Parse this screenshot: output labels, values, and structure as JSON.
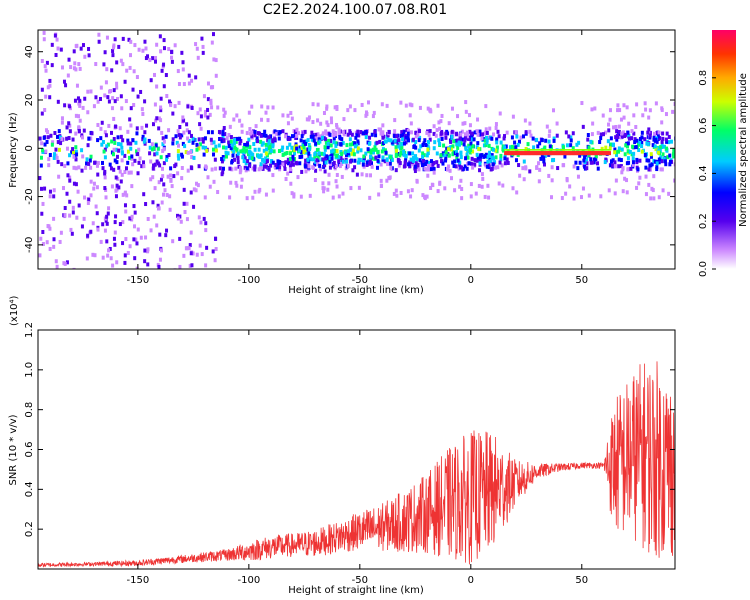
{
  "figure_title": "C2E2.2024.100.07.08.R01",
  "chart_data": [
    {
      "type": "heatmap",
      "title": "",
      "xlabel": "Height of straight line (km)",
      "ylabel": "Frequency (Hz)",
      "xlim": [
        -195,
        92
      ],
      "ylim": [
        -50,
        49
      ],
      "x_ticks": [
        -150,
        -100,
        -50,
        0,
        50
      ],
      "y_ticks": [
        -40,
        -20,
        0,
        20,
        40
      ],
      "grid": false,
      "colorbar": {
        "label": "Normalized spectral amplitude",
        "range": [
          0,
          1
        ],
        "ticks": [
          "0.0",
          "0.2",
          "0.4",
          "0.6",
          "0.8"
        ],
        "tick_values": [
          0,
          0.2,
          0.4,
          0.6,
          0.8
        ],
        "colors": [
          "#ffffff",
          "#cc88ff",
          "#5500ee",
          "#0000ff",
          "#00ccff",
          "#00ff66",
          "#ccff00",
          "#ffaa00",
          "#ff3300",
          "#ff0066"
        ]
      },
      "features": {
        "noise_region_x": [
          -195,
          -115
        ],
        "strong_tone_x": [
          15,
          62
        ],
        "strong_tone_frequency": -2
      }
    },
    {
      "type": "line",
      "title": "",
      "xlabel": "Height of straight line (km)",
      "ylabel": "SNR (10 * v/v)",
      "y_multiplier": "(x10⁴)",
      "xlim": [
        -195,
        92
      ],
      "ylim": [
        0,
        1.2
      ],
      "x_ticks": [
        -150,
        -100,
        -50,
        0,
        50
      ],
      "y_ticks": [
        "0.2",
        "0.4",
        "0.6",
        "0.8",
        "1.0",
        "1.2"
      ],
      "y_tick_values": [
        0.2,
        0.4,
        0.6,
        0.8,
        1.0,
        1.2
      ],
      "grid": false,
      "series": [
        {
          "color": "#ee3333",
          "envelope": {
            "x": [
              -195,
              -170,
              -150,
              -130,
              -110,
              -100,
              -90,
              -80,
              -70,
              -60,
              -50,
              -40,
              -30,
              -20,
              -10,
              0,
              10,
              20,
              30,
              40,
              50,
              55,
              60,
              62,
              65,
              70,
              75,
              80,
              85,
              92
            ],
            "y": [
              0.02,
              0.025,
              0.03,
              0.05,
              0.07,
              0.09,
              0.11,
              0.12,
              0.13,
              0.16,
              0.19,
              0.21,
              0.24,
              0.28,
              0.33,
              0.36,
              0.39,
              0.43,
              0.49,
              0.51,
              0.52,
              0.52,
              0.52,
              0.52,
              0.52,
              0.55,
              0.58,
              0.57,
              0.55,
              0.5
            ],
            "spread": [
              0.01,
              0.01,
              0.015,
              0.02,
              0.03,
              0.05,
              0.06,
              0.06,
              0.07,
              0.08,
              0.1,
              0.12,
              0.16,
              0.2,
              0.28,
              0.34,
              0.3,
              0.12,
              0.04,
              0.02,
              0.015,
              0.015,
              0.015,
              0.2,
              0.35,
              0.4,
              0.45,
              0.5,
              0.5,
              0.45
            ]
          }
        }
      ]
    }
  ]
}
